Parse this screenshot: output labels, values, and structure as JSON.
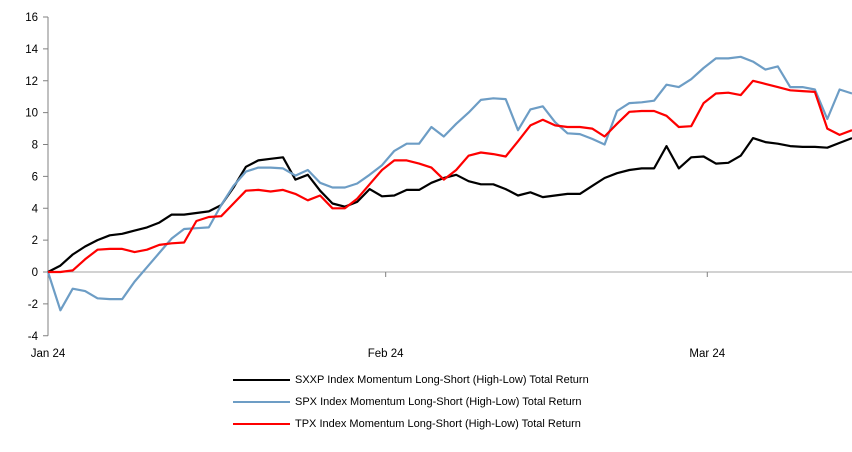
{
  "chart_data": {
    "type": "line",
    "title": "",
    "xlabel": "",
    "ylabel": "",
    "ylim": [
      -4,
      16
    ],
    "y_tick_step": 2,
    "y_tick_labels": [
      "16",
      "14",
      "12",
      "10",
      "8",
      "6",
      "4",
      "2",
      "0",
      "-2",
      "-4"
    ],
    "x_tick_labels": [
      "Jan 24",
      "Feb 24",
      "Mar 24"
    ],
    "x_tick_day_index": [
      0,
      27.3,
      53.3
    ],
    "x_point_count": 66,
    "grid": "zero-line-only",
    "legend_position": "bottom",
    "axis_color": "#808080",
    "zero_line_color": "#a6a6a6",
    "series": [
      {
        "name": "SXXP Index Momentum Long-Short (High-Low) Total Return",
        "id": "sxxp",
        "color": "#000000",
        "values": [
          0,
          0.4,
          1.1,
          1.6,
          2.0,
          2.3,
          2.4,
          2.6,
          2.8,
          3.1,
          3.6,
          3.6,
          3.7,
          3.8,
          4.2,
          5.3,
          6.6,
          7.0,
          7.1,
          7.2,
          5.8,
          6.1,
          5.1,
          4.3,
          4.1,
          4.4,
          5.2,
          4.75,
          4.8,
          5.15,
          5.15,
          5.6,
          5.9,
          6.1,
          5.7,
          5.5,
          5.5,
          5.2,
          4.8,
          5.0,
          4.7,
          4.8,
          4.9,
          4.9,
          5.4,
          5.9,
          6.2,
          6.4,
          6.5,
          6.5,
          7.9,
          6.5,
          7.2,
          7.25,
          6.8,
          6.85,
          7.3,
          8.4,
          8.15,
          8.05,
          7.9,
          7.85,
          7.85,
          7.8,
          8.1,
          8.4
        ]
      },
      {
        "name": "SPX Index Momentum Long-Short (High-Low) Total Return",
        "id": "spx",
        "color": "#6d9dc5",
        "values": [
          0,
          -2.4,
          -1.05,
          -1.2,
          -1.65,
          -1.7,
          -1.7,
          -0.6,
          0.3,
          1.2,
          2.1,
          2.7,
          2.75,
          2.8,
          4.2,
          5.4,
          6.3,
          6.55,
          6.55,
          6.5,
          6.05,
          6.4,
          5.6,
          5.3,
          5.3,
          5.55,
          6.1,
          6.7,
          7.6,
          8.05,
          8.05,
          9.1,
          8.5,
          9.3,
          10.0,
          10.8,
          10.9,
          10.85,
          8.9,
          10.2,
          10.4,
          9.4,
          8.7,
          8.65,
          8.35,
          8.0,
          10.1,
          10.6,
          10.65,
          10.75,
          11.75,
          11.6,
          12.1,
          12.8,
          13.4,
          13.4,
          13.5,
          13.2,
          12.7,
          12.9,
          11.6,
          11.6,
          11.45,
          9.6,
          11.45,
          11.2
        ]
      },
      {
        "name": "TPX Index Momentum Long-Short (High-Low) Total Return",
        "id": "tpx",
        "color": "#fe0000",
        "values": [
          0,
          0,
          0.1,
          0.8,
          1.4,
          1.45,
          1.45,
          1.25,
          1.4,
          1.7,
          1.8,
          1.85,
          3.2,
          3.45,
          3.5,
          4.3,
          5.1,
          5.15,
          5.05,
          5.15,
          4.9,
          4.5,
          4.8,
          4.0,
          4.0,
          4.6,
          5.5,
          6.4,
          7.0,
          7.0,
          6.8,
          6.55,
          5.8,
          6.4,
          7.3,
          7.5,
          7.4,
          7.25,
          8.2,
          9.2,
          9.55,
          9.2,
          9.1,
          9.1,
          9.0,
          8.5,
          9.3,
          10.05,
          10.1,
          10.1,
          9.8,
          9.1,
          9.15,
          10.6,
          11.2,
          11.25,
          11.1,
          12.0,
          11.8,
          11.6,
          11.4,
          11.35,
          11.3,
          9.0,
          8.6,
          8.9
        ]
      }
    ]
  },
  "legend": {
    "items": [
      {
        "label": "SXXP Index Momentum Long-Short (High-Low) Total Return"
      },
      {
        "label": "SPX Index Momentum Long-Short (High-Low) Total Return"
      },
      {
        "label": "TPX Index Momentum Long-Short (High-Low) Total Return"
      }
    ]
  }
}
